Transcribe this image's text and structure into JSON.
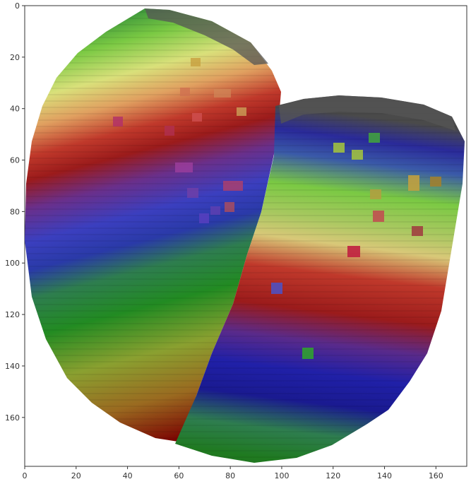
{
  "image": {
    "description_kind": "segmentation-overlay",
    "xlim": [
      0,
      172
    ],
    "ylim": [
      0,
      179
    ],
    "x_ticks": [
      0,
      20,
      40,
      60,
      80,
      100,
      120,
      140,
      160
    ],
    "y_ticks": [
      0,
      20,
      40,
      60,
      80,
      100,
      120,
      140,
      160
    ],
    "x_tick_labels": [
      "0",
      "20",
      "40",
      "60",
      "80",
      "100",
      "120",
      "140",
      "160"
    ],
    "y_tick_labels": [
      "0",
      "20",
      "40",
      "60",
      "80",
      "100",
      "120",
      "140",
      "160"
    ],
    "band_palette": [
      "#8b0000",
      "#c0392b",
      "#e8d27a",
      "#7ac943",
      "#2e8b57",
      "#228b22",
      "#4b3fbf",
      "#1a1aa0"
    ],
    "frame_color": "#333333",
    "background_color": "#ffffff"
  }
}
